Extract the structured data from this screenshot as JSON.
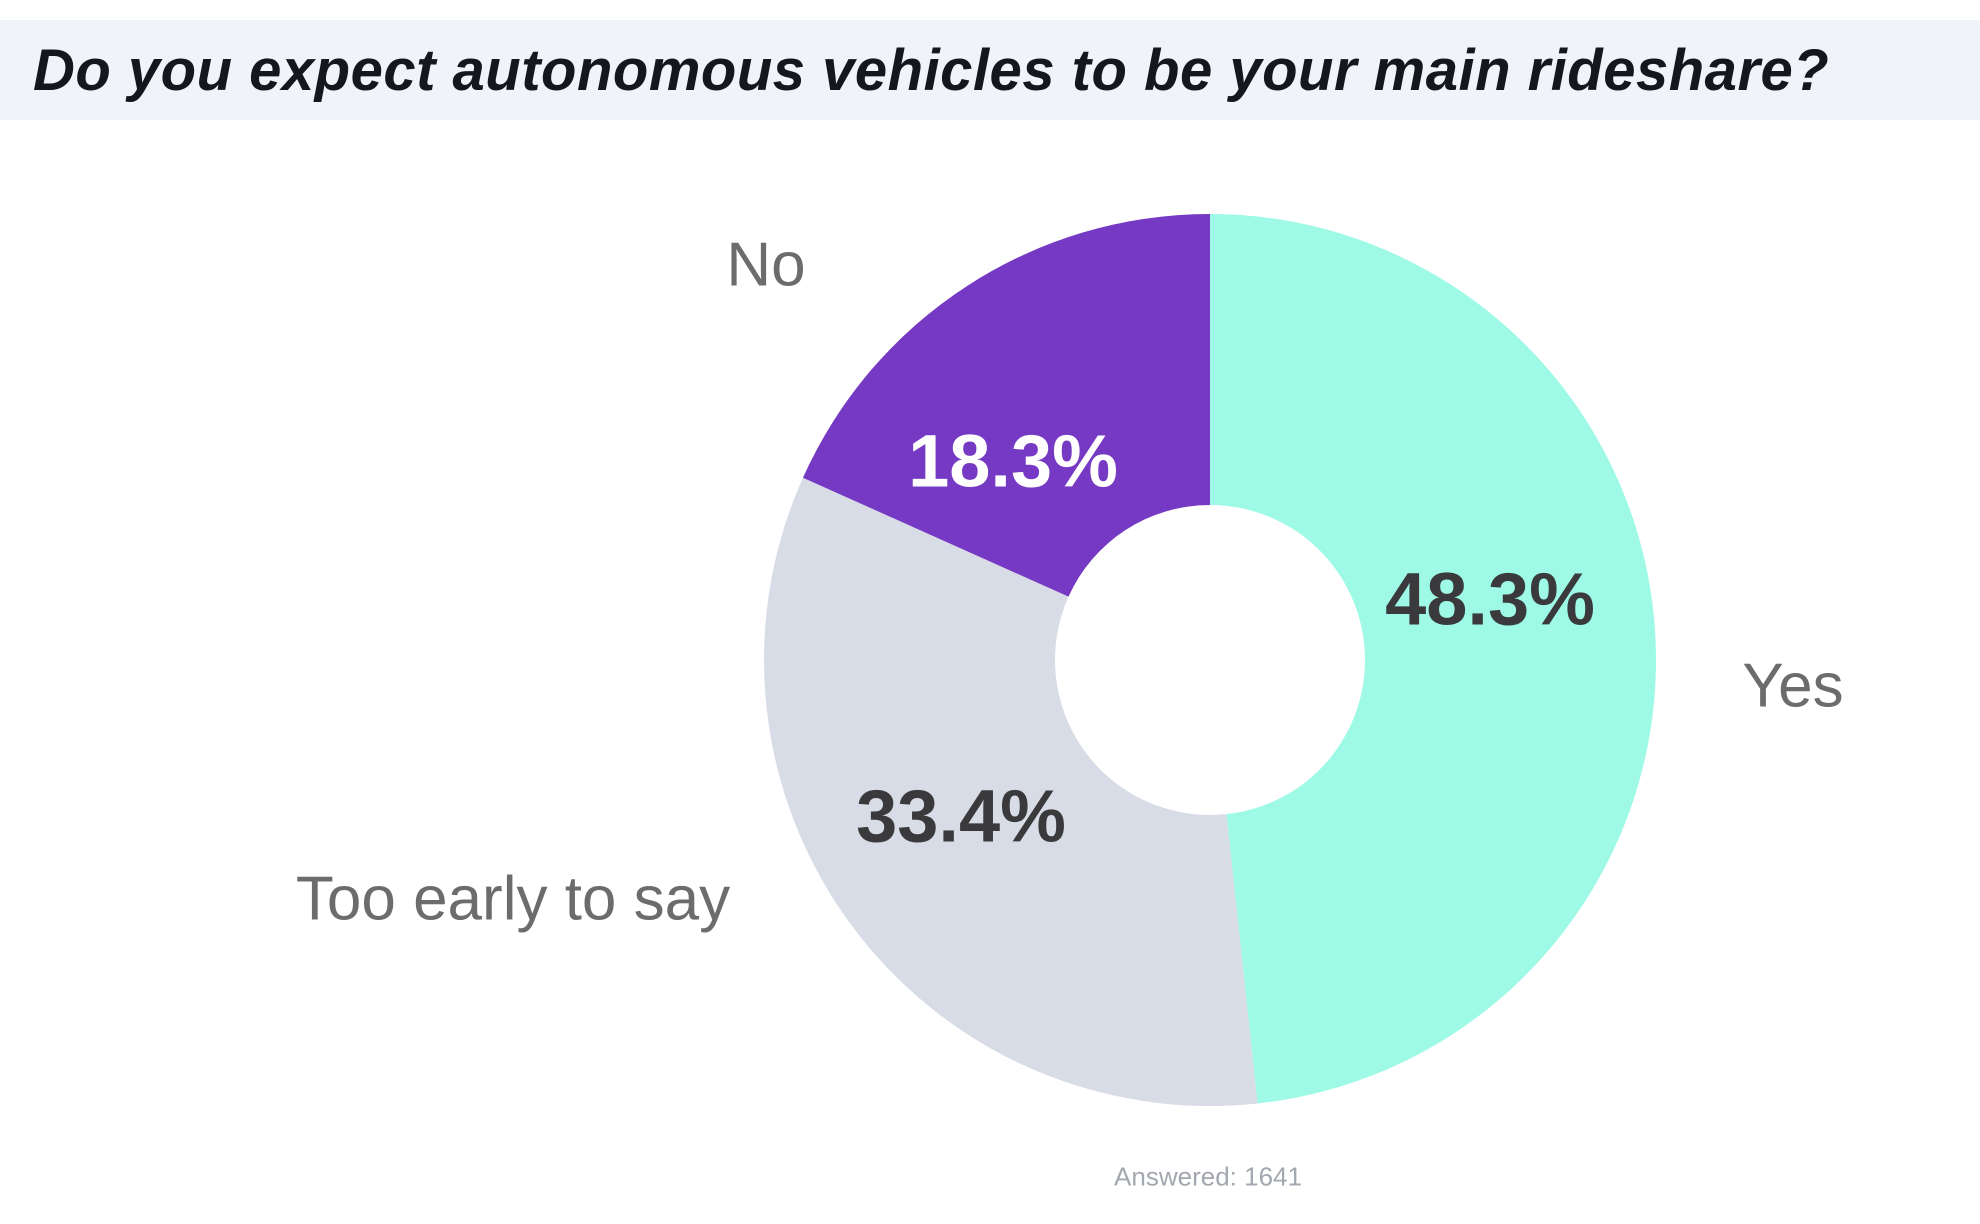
{
  "chart_data": {
    "type": "pie",
    "subtype": "donut",
    "title": "Do you expect autonomous vehicles to be your main rideshare?",
    "categories": [
      "Yes",
      "Too early to say",
      "No"
    ],
    "values": [
      48.3,
      33.4,
      18.3
    ],
    "value_labels": [
      "48.3%",
      "33.4%",
      "18.3%"
    ],
    "colors": [
      "#9EFAE6",
      "#D8DCE6",
      "#7639C4"
    ],
    "value_label_colors": [
      "#3A3A3C",
      "#3A3A3C",
      "#FFFFFF"
    ],
    "start_angle_deg": 0,
    "direction": "clockwise",
    "donut_hole_ratio": 0.348,
    "legend_position": "none",
    "annotation": "Answered: 1641"
  },
  "styles": {
    "banner_bg": "#F0F3FA",
    "title_color": "#14171C",
    "category_label_color": "#6C6C6C",
    "footer_color": "#A3A8B0"
  }
}
